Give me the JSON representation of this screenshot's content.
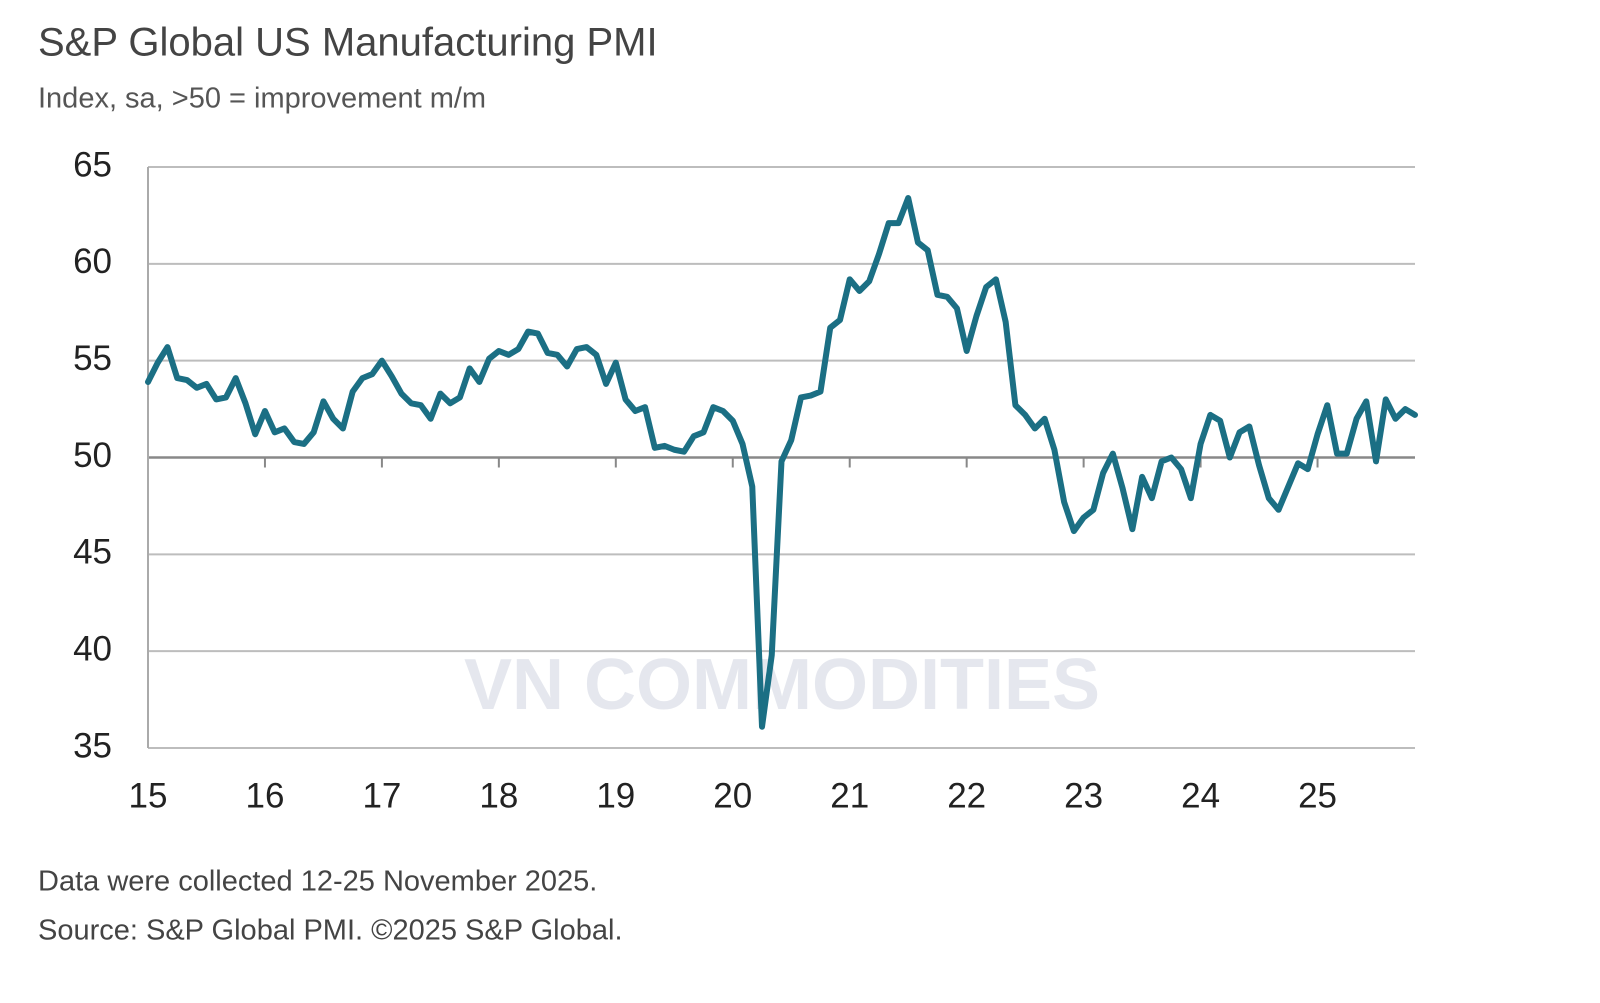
{
  "chart_data": {
    "type": "line",
    "title": "S&P Global US Manufacturing PMI",
    "subtitle": "Index, sa, >50 = improvement m/m",
    "footnotes": [
      "Data were collected 12-25 November 2025.",
      "Source: S&P Global PMI. ©2025 S&P Global."
    ],
    "watermark": "VN COMMODITIES",
    "categories": [
      "15",
      null,
      null,
      null,
      null,
      null,
      null,
      null,
      null,
      null,
      null,
      null,
      "16",
      null,
      null,
      null,
      null,
      null,
      null,
      null,
      null,
      null,
      null,
      null,
      "17",
      null,
      null,
      null,
      null,
      null,
      null,
      null,
      null,
      null,
      null,
      null,
      "18",
      null,
      null,
      null,
      null,
      null,
      null,
      null,
      null,
      null,
      null,
      null,
      "19",
      null,
      null,
      null,
      null,
      null,
      null,
      null,
      null,
      null,
      null,
      null,
      "20",
      null,
      null,
      null,
      null,
      null,
      null,
      null,
      null,
      null,
      null,
      null,
      "21",
      null,
      null,
      null,
      null,
      null,
      null,
      null,
      null,
      null,
      null,
      null,
      "22",
      null,
      null,
      null,
      null,
      null,
      null,
      null,
      null,
      null,
      null,
      null,
      "23",
      null,
      null,
      null,
      null,
      null,
      null,
      null,
      null,
      null,
      null,
      null,
      "24",
      null,
      null,
      null,
      null,
      null,
      null,
      null,
      null,
      null,
      null,
      null,
      "25",
      null,
      null,
      null,
      null,
      null,
      null,
      null,
      null,
      null,
      null
    ],
    "series": [
      {
        "name": "PMI",
        "color": "#1b6f84",
        "values": [
          53.9,
          54.9,
          55.7,
          54.1,
          54.0,
          53.6,
          53.8,
          53.0,
          53.1,
          54.1,
          52.8,
          51.2,
          52.4,
          51.3,
          51.5,
          50.8,
          50.7,
          51.3,
          52.9,
          52.0,
          51.5,
          53.4,
          54.1,
          54.3,
          55.0,
          54.2,
          53.3,
          52.8,
          52.7,
          52.0,
          53.3,
          52.8,
          53.1,
          54.6,
          53.9,
          55.1,
          55.5,
          55.3,
          55.6,
          56.5,
          56.4,
          55.4,
          55.3,
          54.7,
          55.6,
          55.7,
          55.3,
          53.8,
          54.9,
          53.0,
          52.4,
          52.6,
          50.5,
          50.6,
          50.4,
          50.3,
          51.1,
          51.3,
          52.6,
          52.4,
          51.9,
          50.7,
          48.5,
          36.1,
          39.8,
          49.8,
          50.9,
          53.1,
          53.2,
          53.4,
          56.7,
          57.1,
          59.2,
          58.6,
          59.1,
          60.5,
          62.1,
          62.1,
          63.4,
          61.1,
          60.7,
          58.4,
          58.3,
          57.7,
          55.5,
          57.3,
          58.8,
          59.2,
          57.0,
          52.7,
          52.2,
          51.5,
          52.0,
          50.4,
          47.7,
          46.2,
          46.9,
          47.3,
          49.2,
          50.2,
          48.4,
          46.3,
          49.0,
          47.9,
          49.8,
          50.0,
          49.4,
          47.9,
          50.7,
          52.2,
          51.9,
          50.0,
          51.3,
          51.6,
          49.6,
          47.9,
          47.3,
          48.5,
          49.7,
          49.4,
          51.2,
          52.7,
          50.2,
          50.2,
          52.0,
          52.9,
          49.8,
          53.0,
          52.0,
          52.5,
          52.2
        ]
      }
    ],
    "ylim": [
      35,
      65
    ],
    "yticks": [
      35,
      40,
      45,
      50,
      55,
      60,
      65
    ],
    "grid": true,
    "reference_line": 50
  }
}
